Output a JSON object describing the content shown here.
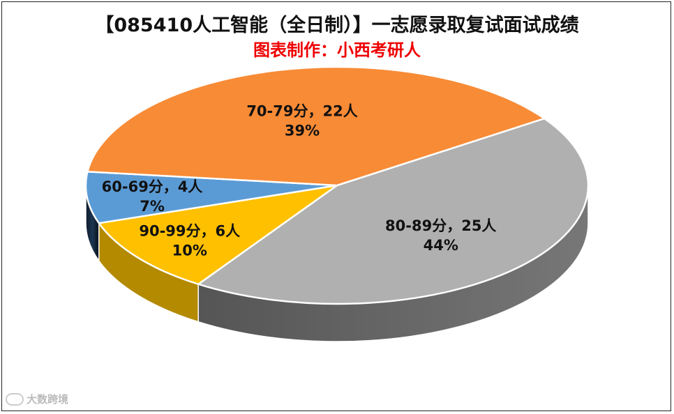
{
  "chart_data": {
    "type": "pie",
    "title": "【085410人工智能（全日制）】一志愿录取复试面试成绩",
    "subtitle": "图表制作：小西考研人",
    "slices": [
      {
        "name": "80-89分",
        "count_label": "25人",
        "value": 25,
        "percent": "44%",
        "color": "#b0b0b0"
      },
      {
        "name": "90-99分",
        "count_label": "6人",
        "value": 6,
        "percent": "10%",
        "color": "#ffc000"
      },
      {
        "name": "60-69分",
        "count_label": "4人",
        "value": 4,
        "percent": "7%",
        "color": "#5b9bd5"
      },
      {
        "name": "70-79分",
        "count_label": "22人",
        "value": 22,
        "percent": "39%",
        "color": "#f88b36"
      }
    ],
    "legend": "none"
  },
  "watermark": {
    "text": "大数跨境"
  }
}
